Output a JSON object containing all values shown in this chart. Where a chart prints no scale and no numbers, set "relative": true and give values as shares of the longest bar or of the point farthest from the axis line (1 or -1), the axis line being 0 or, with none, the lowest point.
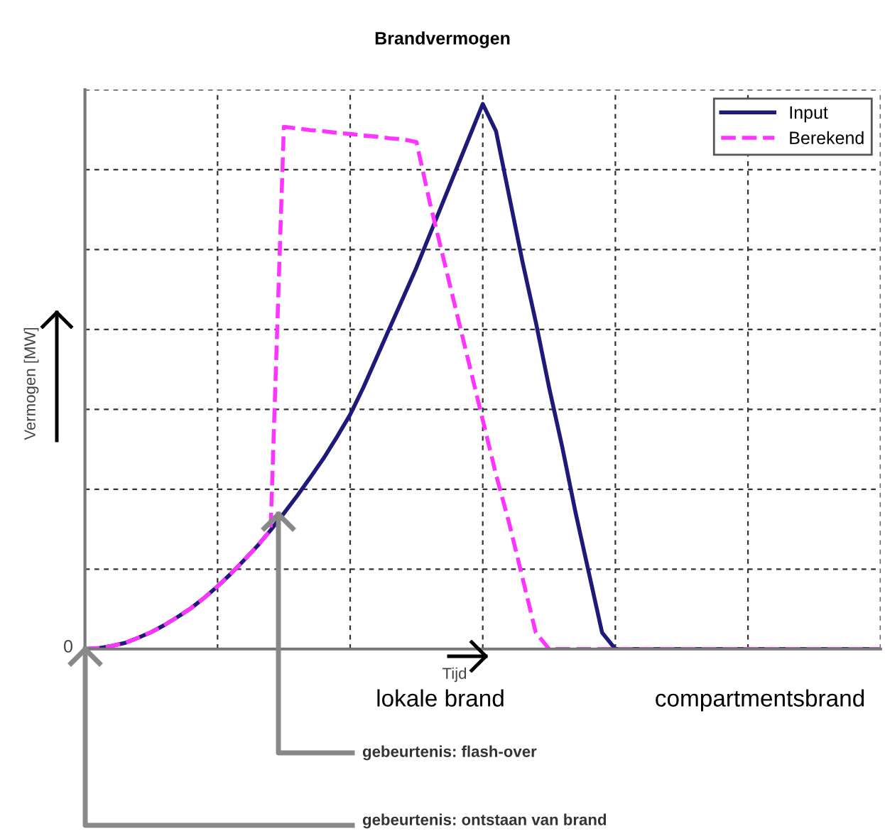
{
  "chart_data": {
    "type": "line",
    "title": "Brandvermogen",
    "xlabel": "Tijd",
    "ylabel": "Vermogen [MW]",
    "relative": true,
    "grid": true,
    "legend": "top right",
    "marker": "none",
    "categories": [
      null,
      null,
      null,
      null,
      null,
      null,
      null,
      null,
      null,
      null,
      null,
      null,
      null,
      null,
      null,
      null,
      null,
      null,
      null,
      null,
      null,
      null,
      null,
      null,
      null,
      null,
      null,
      null,
      null,
      null,
      null,
      null,
      null,
      null,
      null,
      null,
      null,
      null,
      null,
      null,
      null,
      null,
      null,
      null,
      null,
      null,
      null,
      null,
      null,
      null,
      null,
      null,
      null,
      null,
      null,
      null,
      null,
      null,
      null,
      null,
      null
    ],
    "series": [
      {
        "name": "Input",
        "color": "#1f1a7a",
        "line_style": "solid",
        "values": [
          0,
          0.0015,
          0.0055,
          0.011,
          0.0205,
          0.031,
          0.044,
          0.059,
          0.075,
          0.094,
          0.115,
          0.138,
          0.163,
          0.189,
          0.218,
          0.249,
          0.281,
          0.315,
          0.35,
          0.389,
          0.43,
          0.48,
          0.535,
          0.59,
          0.645,
          0.7,
          0.76,
          0.82,
          0.88,
          0.94,
          1.0,
          0.95,
          0.83,
          0.71,
          0.6,
          0.48,
          0.37,
          0.25,
          0.14,
          0.03,
          0,
          0,
          0,
          0,
          0,
          0,
          0,
          0,
          0,
          0,
          0,
          0,
          0,
          0,
          0,
          0,
          0,
          0,
          0,
          0,
          0
        ]
      },
      {
        "name": "Berekend",
        "color": "#ff33ff",
        "line_style": "dashed",
        "values": [
          0,
          0.0015,
          0.0055,
          0.011,
          0.0205,
          0.031,
          0.044,
          0.059,
          0.075,
          0.094,
          0.115,
          0.138,
          0.163,
          0.189,
          0.218,
          0.958,
          0.955,
          0.952,
          0.95,
          0.947,
          0.945,
          0.942,
          0.94,
          0.937,
          0.935,
          0.93,
          0.82,
          0.72,
          0.62,
          0.52,
          0.42,
          0.32,
          0.23,
          0.13,
          0.03,
          0,
          0,
          0,
          0,
          0,
          0,
          0,
          0,
          0,
          0,
          0,
          0,
          0,
          0,
          0,
          0,
          0,
          0,
          0,
          0,
          0,
          0,
          0,
          0,
          0,
          0
        ]
      }
    ],
    "annotations": [
      "0",
      "lokale brand",
      "compartmentsbrand",
      "gebeurtenis: flash-over",
      "gebeurtenis: ontstaan van brand"
    ]
  }
}
